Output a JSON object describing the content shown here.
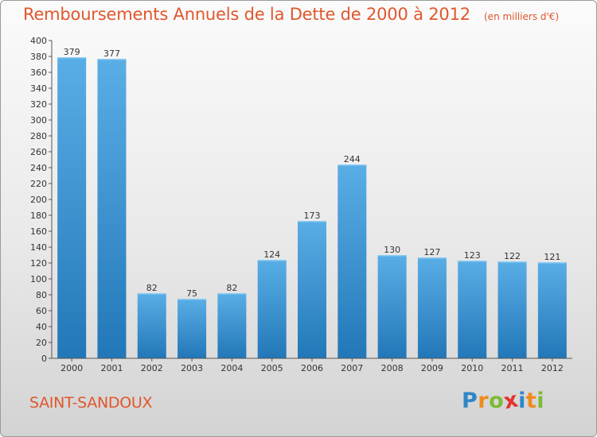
{
  "header": {
    "title": "Remboursements Annuels de la Dette de 2000 à 2012",
    "unit": "(en milliers d'€)"
  },
  "footer": {
    "commune": "SAINT-SANDOUX",
    "logo": {
      "letters": [
        "P",
        "r",
        "o",
        "x",
        "i",
        "t",
        "i"
      ],
      "colors": [
        "#2f86c8",
        "#ef8a1c",
        "#7dbb32",
        "#e3342f",
        "#2f86c8",
        "#ef8a1c",
        "#7dbb32"
      ]
    }
  },
  "colors": {
    "accent": "#e0572c",
    "bar_light": "#5aaee6",
    "bar_dark": "#2277b8",
    "axis": "#555555"
  },
  "chart_data": {
    "type": "bar",
    "categories": [
      "2000",
      "2001",
      "2002",
      "2003",
      "2004",
      "2005",
      "2006",
      "2007",
      "2008",
      "2009",
      "2010",
      "2011",
      "2012"
    ],
    "values": [
      379,
      377,
      82,
      75,
      82,
      124,
      173,
      244,
      130,
      127,
      123,
      122,
      121
    ],
    "ylim": [
      0,
      400
    ],
    "yticks": [
      0,
      20,
      40,
      60,
      80,
      100,
      120,
      140,
      160,
      180,
      200,
      220,
      240,
      260,
      280,
      300,
      320,
      340,
      360,
      380,
      400
    ],
    "xlabel": "",
    "ylabel": "",
    "grid": false,
    "data_labels": true
  }
}
